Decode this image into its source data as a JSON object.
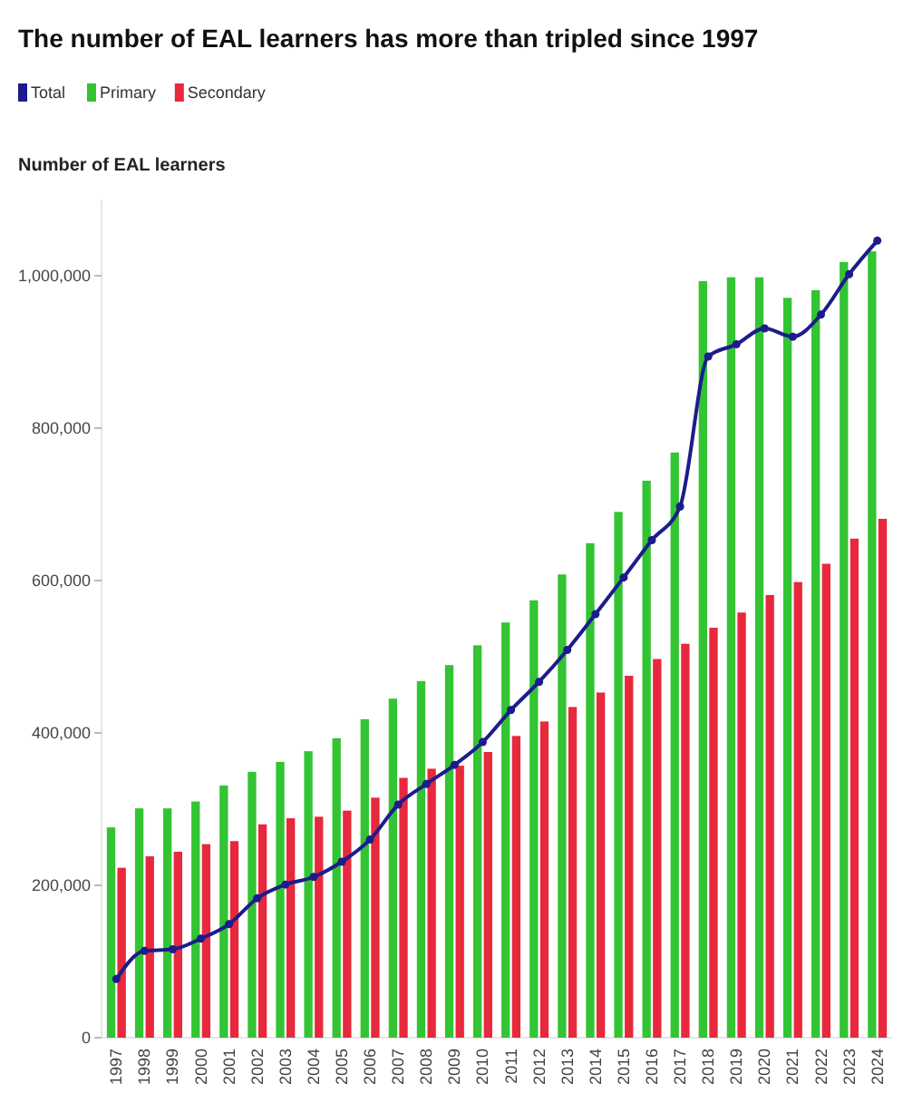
{
  "chart_data": {
    "type": "bar",
    "title": "The number of EAL learners has more than tripled since 1997",
    "ylabel": "Number of EAL learners",
    "categories": [
      "1997",
      "1998",
      "1999",
      "2000",
      "2001",
      "2002",
      "2003",
      "2004",
      "2005",
      "2006",
      "2007",
      "2008",
      "2009",
      "2010",
      "2011",
      "2012",
      "2013",
      "2014",
      "2015",
      "2016",
      "2017",
      "2018",
      "2019",
      "2020",
      "2021",
      "2022",
      "2023",
      "2024"
    ],
    "series": [
      {
        "name": "Total",
        "type": "line",
        "color": "#1c1c8c",
        "values": [
          77000,
          114000,
          116000,
          130000,
          149000,
          183000,
          201000,
          211000,
          231000,
          260000,
          306000,
          333000,
          358000,
          388000,
          430000,
          467000,
          509000,
          556000,
          604000,
          653000,
          697000,
          894000,
          910000,
          931000,
          920000,
          949000,
          1002000,
          1046000
        ]
      },
      {
        "name": "Primary",
        "color": "#33c433",
        "values": [
          276000,
          301000,
          301000,
          310000,
          331000,
          349000,
          362000,
          376000,
          393000,
          418000,
          445000,
          468000,
          489000,
          515000,
          545000,
          574000,
          608000,
          649000,
          690000,
          731000,
          768000,
          993000,
          998000,
          998000,
          971000,
          981000,
          1018000,
          1032000
        ]
      },
      {
        "name": "Secondary",
        "color": "#e8283c",
        "values": [
          223000,
          238000,
          244000,
          254000,
          258000,
          280000,
          288000,
          290000,
          298000,
          315000,
          341000,
          353000,
          357000,
          375000,
          396000,
          415000,
          434000,
          453000,
          475000,
          497000,
          517000,
          538000,
          558000,
          581000,
          598000,
          622000,
          655000,
          681000
        ]
      }
    ],
    "ylim": [
      0,
      1100000
    ],
    "yticks": [
      0,
      {
        "value": 200000,
        "label": "200,000"
      },
      {
        "value": 400000,
        "label": "400,000"
      },
      {
        "value": 600000,
        "label": "600,000"
      },
      {
        "value": 800000,
        "label": "800,000"
      },
      {
        "value": 1000000,
        "label": "1,000,000"
      }
    ],
    "legend": "top left",
    "marker": "circle",
    "grid": false
  }
}
